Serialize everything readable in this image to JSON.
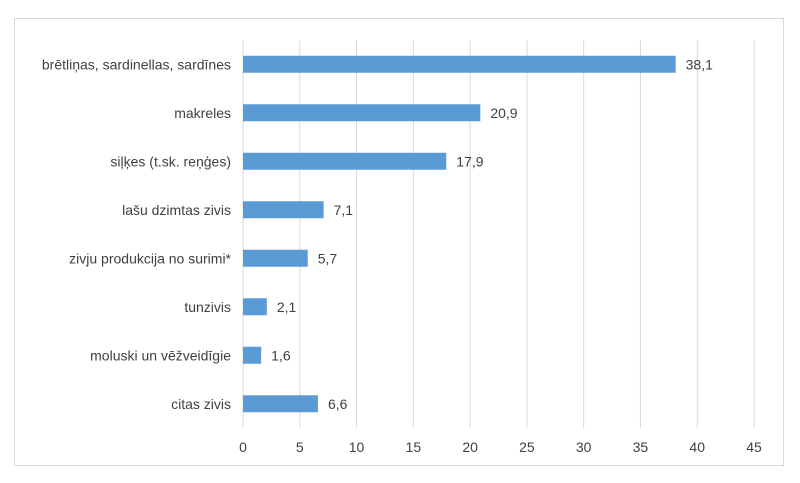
{
  "chart_data": {
    "type": "bar",
    "orientation": "horizontal",
    "title": "",
    "xlabel": "",
    "ylabel": "",
    "categories": [
      "brētliņas, sardinellas, sardīnes",
      "makreles",
      "siļķes (t.sk. reņģes)",
      "lašu dzimtas zivis",
      "zivju produkcija no surimi*",
      "tunzivis",
      "moluski un vēžveidīgie",
      "citas zivis"
    ],
    "values": [
      38.1,
      20.9,
      17.9,
      7.1,
      5.7,
      2.1,
      1.6,
      6.6
    ],
    "value_labels": [
      "38,1",
      "20,9",
      "17,9",
      "7,1",
      "5,7",
      "2,1",
      "1,6",
      "6,6"
    ],
    "xlim": [
      0,
      45
    ],
    "xticks": [
      "0",
      "5",
      "10",
      "15",
      "20",
      "25",
      "30",
      "35",
      "40",
      "45"
    ],
    "grid": "vertical",
    "legend": "none",
    "colors": {
      "bar": "#5b9bd5",
      "grid": "#d9d9d9",
      "text": "#404040"
    }
  }
}
